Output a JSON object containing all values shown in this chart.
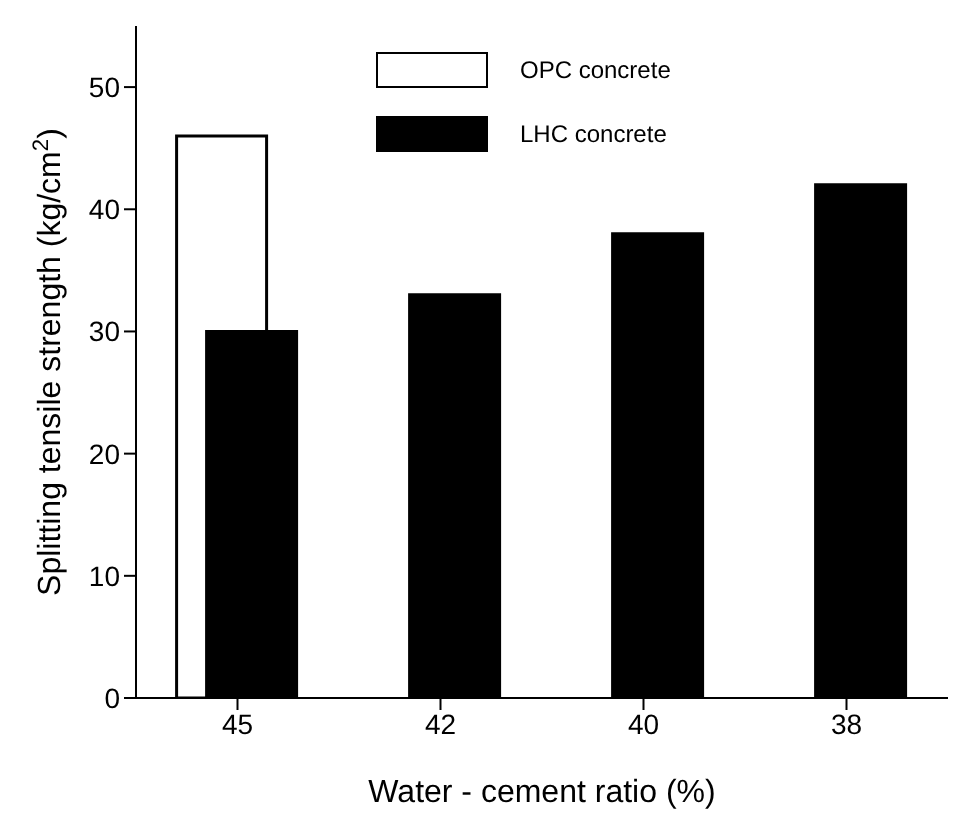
{
  "chart_data": {
    "type": "bar",
    "xlabel": "Water - cement ratio (%)",
    "ylabel": "Splitting tensile strength (kg/cm$^{2}$)",
    "categories": [
      "45",
      "42",
      "40",
      "38"
    ],
    "series": [
      {
        "name": "OPC concrete",
        "color": "#ffffff",
        "values": [
          46,
          null,
          null,
          null
        ]
      },
      {
        "name": "LHC concrete",
        "color": "#000000",
        "values": [
          30,
          33,
          38,
          42
        ]
      }
    ],
    "ylim": [
      0,
      55
    ],
    "yticks": [
      0,
      10,
      20,
      30,
      40,
      50
    ],
    "grid": false,
    "legend": "top"
  }
}
